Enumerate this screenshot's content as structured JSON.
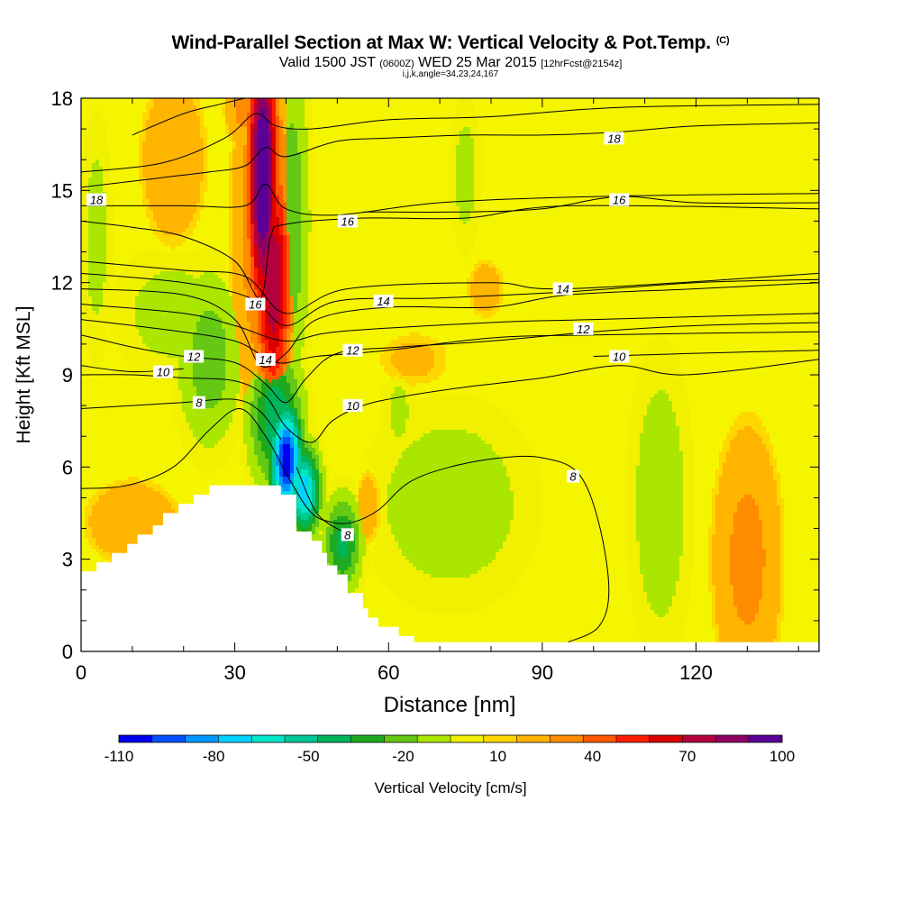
{
  "title": {
    "main": "Wind-Parallel Section at Max W: Vertical Velocity & Pot.Temp.",
    "main_suffix": "(C)",
    "sub_a": "Valid 1500 JST",
    "sub_b": "(0600Z)",
    "sub_c": "WED 25 Mar 2015",
    "sub_d": "[12hrFcst@2154z]",
    "params": "i,j,k,angle=34,23,24,167"
  },
  "colors": {
    "background_field": "#f5f500",
    "terrain": "#ffffff",
    "contour": "#000000",
    "colorbar": [
      "#0000f0",
      "#0050ff",
      "#0096ff",
      "#00d2ff",
      "#00e6c8",
      "#00c896",
      "#00b45a",
      "#1eaa1e",
      "#64c814",
      "#aae600",
      "#f0f000",
      "#ffd700",
      "#ffb400",
      "#ff8c00",
      "#ff5a00",
      "#ff1e00",
      "#dc0000",
      "#b4003c",
      "#8c0064",
      "#5a0096"
    ]
  },
  "chart_data": {
    "type": "heatmap",
    "xlabel": "Distance [nm]",
    "ylabel": "Height [Kft MSL]",
    "xlim": [
      0,
      144
    ],
    "ylim": [
      0,
      18
    ],
    "xticks": [
      0,
      30,
      60,
      90,
      120
    ],
    "yticks": [
      0,
      3,
      6,
      9,
      12,
      15,
      18
    ],
    "colorbar": {
      "label": "Vertical Velocity [cm/s]",
      "min": -110,
      "max": 100,
      "step": 10,
      "tick_labels": [
        -110,
        -80,
        -50,
        -20,
        10,
        40,
        70,
        100
      ]
    },
    "terrain_profile": [
      [
        0,
        2.6
      ],
      [
        3,
        2.6
      ],
      [
        3,
        2.9
      ],
      [
        6,
        2.9
      ],
      [
        6,
        3.2
      ],
      [
        9,
        3.2
      ],
      [
        9,
        3.5
      ],
      [
        11,
        3.5
      ],
      [
        11,
        3.8
      ],
      [
        14,
        3.8
      ],
      [
        14,
        4.1
      ],
      [
        16,
        4.1
      ],
      [
        16,
        4.5
      ],
      [
        19,
        4.5
      ],
      [
        19,
        4.8
      ],
      [
        22,
        4.8
      ],
      [
        22,
        5.1
      ],
      [
        25,
        5.1
      ],
      [
        25,
        5.4
      ],
      [
        39,
        5.4
      ],
      [
        39,
        5.1
      ],
      [
        42,
        5.1
      ],
      [
        42,
        3.9
      ],
      [
        45,
        3.9
      ],
      [
        45,
        3.6
      ],
      [
        47,
        3.6
      ],
      [
        47,
        3.2
      ],
      [
        48,
        3.2
      ],
      [
        48,
        2.8
      ],
      [
        50,
        2.8
      ],
      [
        50,
        2.5
      ],
      [
        52,
        2.5
      ],
      [
        52,
        1.9
      ],
      [
        55,
        1.9
      ],
      [
        55,
        1.4
      ],
      [
        56,
        1.4
      ],
      [
        56,
        1.1
      ],
      [
        58,
        1.1
      ],
      [
        58,
        0.8
      ],
      [
        62,
        0.8
      ],
      [
        62,
        0.5
      ],
      [
        65,
        0.5
      ],
      [
        65,
        0.3
      ],
      [
        144,
        0.3
      ]
    ],
    "velocity_features": [
      {
        "center": [
          35.5,
          15.5
        ],
        "radius": [
          2.8,
          4.5
        ],
        "value": 100
      },
      {
        "center": [
          37.5,
          12.0
        ],
        "radius": [
          3.5,
          4.0
        ],
        "value": 70
      },
      {
        "center": [
          36.5,
          13.5
        ],
        "radius": [
          6.5,
          6.0
        ],
        "value": 35
      },
      {
        "center": [
          40.0,
          6.2
        ],
        "radius": [
          3.0,
          1.8
        ],
        "value": -110
      },
      {
        "center": [
          43.5,
          5.2
        ],
        "radius": [
          3.0,
          1.4
        ],
        "value": -80
      },
      {
        "center": [
          38.0,
          7.6
        ],
        "radius": [
          5.0,
          2.2
        ],
        "value": -50
      },
      {
        "center": [
          41.0,
          14.0
        ],
        "radius": [
          3.5,
          5.0
        ],
        "value": -30
      },
      {
        "center": [
          25.0,
          9.5
        ],
        "radius": [
          6.0,
          2.8
        ],
        "value": -28
      },
      {
        "center": [
          18.0,
          11.0
        ],
        "radius": [
          12.0,
          2.2
        ],
        "value": -15
      },
      {
        "center": [
          3.0,
          13.5
        ],
        "radius": [
          3.0,
          4.0
        ],
        "value": -15
      },
      {
        "center": [
          51.0,
          3.5
        ],
        "radius": [
          3.5,
          1.5
        ],
        "value": -45
      },
      {
        "center": [
          72.0,
          4.8
        ],
        "radius": [
          16.0,
          3.2
        ],
        "value": -18
      },
      {
        "center": [
          113.0,
          4.8
        ],
        "radius": [
          6.0,
          4.8
        ],
        "value": -18
      },
      {
        "center": [
          75.0,
          15.5
        ],
        "radius": [
          3.0,
          2.5
        ],
        "value": -15
      },
      {
        "center": [
          62.0,
          7.8
        ],
        "radius": [
          4.0,
          2.0
        ],
        "value": -12
      },
      {
        "center": [
          130.0,
          3.0
        ],
        "radius": [
          7.0,
          4.5
        ],
        "value": 25
      },
      {
        "center": [
          10.0,
          4.2
        ],
        "radius": [
          10.0,
          1.5
        ],
        "value": 20
      },
      {
        "center": [
          18.0,
          16.0
        ],
        "radius": [
          7.0,
          3.0
        ],
        "value": 20
      },
      {
        "center": [
          32.0,
          17.6
        ],
        "radius": [
          4.0,
          1.2
        ],
        "value": 25
      },
      {
        "center": [
          79.0,
          11.8
        ],
        "radius": [
          4.5,
          1.2
        ],
        "value": 15
      },
      {
        "center": [
          65.0,
          9.5
        ],
        "radius": [
          10.0,
          1.3
        ],
        "value": 12
      },
      {
        "center": [
          56.0,
          4.7
        ],
        "radius": [
          3.0,
          1.5
        ],
        "value": 15
      }
    ],
    "theta_contours": [
      {
        "label": "8",
        "points": [
          [
            0,
            5.3
          ],
          [
            9,
            5.4
          ],
          [
            18,
            6.0
          ],
          [
            25,
            7.2
          ],
          [
            31,
            7.9
          ],
          [
            36,
            7.0
          ],
          [
            41,
            5.5
          ],
          [
            45,
            4.5
          ],
          [
            49,
            4.2
          ],
          [
            53,
            4.2
          ],
          [
            58,
            4.6
          ],
          [
            64,
            5.5
          ],
          [
            72,
            6.0
          ],
          [
            82,
            6.3
          ],
          [
            90,
            6.3
          ],
          [
            97,
            5.8
          ],
          [
            101,
            4.2
          ],
          [
            103,
            2.0
          ],
          [
            101,
            0.8
          ],
          [
            95,
            0.3
          ]
        ],
        "label_at": [
          96,
          5.7
        ]
      },
      {
        "label": "8",
        "points": [
          [
            0,
            7.9
          ],
          [
            10,
            8.0
          ],
          [
            20,
            8.1
          ],
          [
            30,
            8.2
          ],
          [
            35,
            7.8
          ],
          [
            39,
            6.9
          ]
        ],
        "label_at": [
          23,
          8.1
        ]
      },
      {
        "label": "8",
        "points": [
          [
            42,
            6.0
          ],
          [
            46,
            4.5
          ],
          [
            51,
            3.9
          ]
        ],
        "label_at": [
          52,
          3.8
        ]
      },
      {
        "label": "10",
        "points": [
          [
            0,
            9.0
          ],
          [
            10,
            9.0
          ],
          [
            20,
            8.9
          ],
          [
            30,
            8.8
          ],
          [
            36,
            8.3
          ],
          [
            40,
            7.3
          ],
          [
            45,
            6.8
          ],
          [
            49,
            7.5
          ],
          [
            55,
            8.0
          ],
          [
            63,
            8.3
          ],
          [
            75,
            8.6
          ],
          [
            90,
            8.9
          ],
          [
            105,
            9.3
          ],
          [
            118,
            9.0
          ],
          [
            144,
            9.5
          ]
        ],
        "label_at": [
          53,
          8.0
        ]
      },
      {
        "label": "10",
        "points": [
          [
            100,
            9.6
          ],
          [
            120,
            9.7
          ],
          [
            144,
            9.8
          ]
        ],
        "label_at": [
          105,
          9.6
        ]
      },
      {
        "label": "10",
        "points": [
          [
            0,
            9.3
          ],
          [
            10,
            9.1
          ],
          [
            20,
            9.2
          ]
        ],
        "label_at": [
          16,
          9.1
        ]
      },
      {
        "label": "12",
        "points": [
          [
            0,
            10.3
          ],
          [
            10,
            9.9
          ],
          [
            20,
            9.6
          ],
          [
            30,
            9.4
          ],
          [
            36,
            8.7
          ],
          [
            40,
            8.1
          ],
          [
            44,
            8.9
          ],
          [
            50,
            9.7
          ],
          [
            62,
            9.9
          ],
          [
            80,
            10.1
          ],
          [
            100,
            10.4
          ],
          [
            120,
            10.6
          ],
          [
            144,
            10.7
          ]
        ],
        "label_at": [
          22,
          9.6
        ]
      },
      {
        "label": "12",
        "points": [
          [
            0,
            10.8
          ],
          [
            15,
            10.5
          ],
          [
            30,
            10.1
          ],
          [
            38,
            9.4
          ],
          [
            46,
            9.6
          ],
          [
            60,
            9.8
          ],
          [
            80,
            10.2
          ],
          [
            100,
            10.3
          ],
          [
            144,
            10.4
          ]
        ],
        "label_at": [
          53,
          9.8
        ]
      },
      {
        "label": "12",
        "points": [
          [
            0,
            11.3
          ],
          [
            20,
            11.0
          ],
          [
            30,
            10.6
          ],
          [
            40,
            10.1
          ],
          [
            50,
            10.4
          ],
          [
            80,
            10.7
          ],
          [
            100,
            10.8
          ],
          [
            144,
            11.0
          ]
        ],
        "label_at": [
          98,
          10.5
        ]
      },
      {
        "label": "14",
        "points": [
          [
            0,
            11.8
          ],
          [
            20,
            11.6
          ],
          [
            30,
            10.8
          ],
          [
            35,
            9.3
          ],
          [
            40,
            9.7
          ],
          [
            46,
            10.8
          ],
          [
            60,
            11.2
          ],
          [
            80,
            11.2
          ],
          [
            95,
            11.6
          ],
          [
            120,
            11.8
          ],
          [
            144,
            12.0
          ]
        ],
        "label_at": [
          36,
          9.5
        ]
      },
      {
        "label": "14",
        "points": [
          [
            0,
            12.3
          ],
          [
            20,
            12.0
          ],
          [
            33,
            11.5
          ],
          [
            40,
            10.6
          ],
          [
            50,
            11.4
          ],
          [
            70,
            11.5
          ],
          [
            95,
            11.7
          ],
          [
            120,
            12.0
          ],
          [
            144,
            12.1
          ]
        ],
        "label_at": [
          59,
          11.4
        ]
      },
      {
        "label": "14",
        "points": [
          [
            0,
            12.7
          ],
          [
            20,
            12.4
          ],
          [
            32,
            12.2
          ],
          [
            40,
            11.0
          ],
          [
            52,
            11.8
          ],
          [
            80,
            12.0
          ],
          [
            95,
            11.8
          ],
          [
            144,
            12.3
          ]
        ],
        "label_at": [
          94,
          11.8
        ]
      },
      {
        "label": "16",
        "points": [
          [
            0,
            14.0
          ],
          [
            10,
            13.8
          ],
          [
            20,
            13.5
          ],
          [
            30,
            12.7
          ],
          [
            35,
            11.5
          ],
          [
            37,
            13.5
          ],
          [
            40,
            13.9
          ],
          [
            55,
            14.1
          ],
          [
            75,
            14.1
          ],
          [
            95,
            14.5
          ],
          [
            144,
            14.4
          ]
        ],
        "label_at": [
          34,
          11.3
        ]
      },
      {
        "label": "16",
        "points": [
          [
            0,
            14.5
          ],
          [
            20,
            14.5
          ],
          [
            32,
            14.5
          ],
          [
            36,
            15.2
          ],
          [
            40,
            14.4
          ],
          [
            50,
            14.2
          ],
          [
            70,
            14.6
          ],
          [
            100,
            14.8
          ],
          [
            144,
            14.9
          ]
        ],
        "label_at": [
          52,
          14.0
        ]
      },
      {
        "label": "16",
        "points": [
          [
            55,
            14.3
          ],
          [
            75,
            14.3
          ],
          [
            90,
            14.4
          ],
          [
            105,
            14.8
          ],
          [
            120,
            14.6
          ],
          [
            144,
            14.6
          ]
        ],
        "label_at": [
          105,
          14.7
        ]
      },
      {
        "label": "18",
        "points": [
          [
            0,
            15.1
          ],
          [
            15,
            15.4
          ],
          [
            25,
            15.6
          ],
          [
            32,
            15.8
          ],
          [
            36,
            16.4
          ],
          [
            40,
            16.1
          ],
          [
            50,
            16.6
          ],
          [
            60,
            16.7
          ],
          [
            75,
            16.8
          ],
          [
            90,
            16.8
          ],
          [
            105,
            16.9
          ],
          [
            120,
            17.1
          ],
          [
            144,
            17.2
          ]
        ],
        "label_at": [
          3,
          14.7
        ]
      },
      {
        "label": "18",
        "points": [
          [
            0,
            15.6
          ],
          [
            16,
            15.9
          ],
          [
            28,
            16.7
          ],
          [
            34,
            17.5
          ],
          [
            38,
            17.1
          ],
          [
            45,
            17.0
          ],
          [
            60,
            17.3
          ],
          [
            80,
            17.4
          ],
          [
            105,
            17.7
          ],
          [
            144,
            17.8
          ]
        ],
        "label_at": [
          104,
          16.7
        ]
      },
      {
        "label": "18",
        "points": [
          [
            10,
            16.8
          ],
          [
            20,
            17.5
          ],
          [
            27,
            17.8
          ],
          [
            32,
            18.0
          ]
        ],
        "label_at": [
          0,
          0
        ],
        "hide_label": true
      }
    ]
  }
}
